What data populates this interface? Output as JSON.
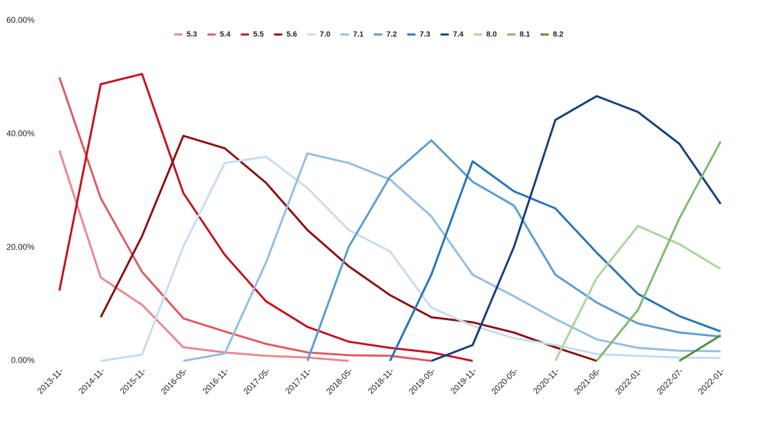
{
  "chart_data": {
    "type": "line",
    "categories": [
      "2013-11-",
      "2014-11-",
      "2015-11-",
      "2016-05-",
      "2016-11-",
      "2017-05-",
      "2017-11-",
      "2018-05-",
      "2018-11-",
      "2019-05-",
      "2019-11-",
      "2020-05-",
      "2020-11-",
      "2021-06-",
      "2022-01-",
      "2022-07-",
      "2022-01-"
    ],
    "series": [
      {
        "name": "5.3",
        "color": "#e8888f",
        "values": [
          37.1,
          14.7,
          9.9,
          2.4,
          1.5,
          0.9,
          0.6,
          0,
          null,
          null,
          null,
          null,
          null,
          null,
          null,
          null,
          null
        ]
      },
      {
        "name": "5.4",
        "color": "#df5a62",
        "values": [
          50,
          28.7,
          15.7,
          7.5,
          5.2,
          3.0,
          1.5,
          1.0,
          0.9,
          0,
          null,
          null,
          null,
          null,
          null,
          null,
          null
        ]
      },
      {
        "name": "5.5",
        "color": "#c8101e",
        "values": [
          12.4,
          48.8,
          50.6,
          29.6,
          18.7,
          10.5,
          6.0,
          3.4,
          2.3,
          1.5,
          0,
          null,
          null,
          null,
          null,
          null,
          null
        ]
      },
      {
        "name": "5.6",
        "color": "#8c0f0f",
        "values": [
          null,
          7.7,
          22,
          39.7,
          37.5,
          31.4,
          23.1,
          16.7,
          11.6,
          7.7,
          6.8,
          5.0,
          2.4,
          0,
          null,
          null,
          null
        ]
      },
      {
        "name": "7.0",
        "color": "#c6dcf0",
        "values": [
          null,
          0,
          1.1,
          20.2,
          34.9,
          36,
          30.5,
          23.1,
          19.3,
          9.4,
          6.2,
          4.0,
          2.8,
          1.2,
          0.9,
          0.6,
          0.5
        ]
      },
      {
        "name": "7.1",
        "color": "#94bde0",
        "values": [
          null,
          null,
          null,
          0,
          1.3,
          17.4,
          36.6,
          34.9,
          32,
          25.5,
          15.2,
          11.4,
          7.4,
          3.8,
          2.3,
          1.8,
          1.7
        ]
      },
      {
        "name": "7.2",
        "color": "#5b9bd0",
        "values": [
          null,
          null,
          null,
          null,
          null,
          null,
          0,
          20.1,
          32.5,
          38.9,
          31.6,
          27.4,
          15.2,
          10.3,
          6.6,
          5.0,
          4.3
        ]
      },
      {
        "name": "7.3",
        "color": "#2474b8",
        "values": [
          null,
          null,
          null,
          null,
          null,
          null,
          null,
          null,
          0,
          15.2,
          35.2,
          29.9,
          26.9,
          19.1,
          11.8,
          7.9,
          5.2
        ]
      },
      {
        "name": "7.4",
        "color": "#123f80",
        "values": [
          null,
          null,
          null,
          null,
          null,
          null,
          null,
          null,
          null,
          0,
          2.8,
          20.1,
          42.5,
          46.7,
          43.9,
          38.3,
          27.7
        ]
      },
      {
        "name": "8.0",
        "color": "#abd49d",
        "values": [
          null,
          null,
          null,
          null,
          null,
          null,
          null,
          null,
          null,
          null,
          null,
          null,
          0,
          14.6,
          23.8,
          20.6,
          16.2
        ]
      },
      {
        "name": "8.1",
        "color": "#7dba6d",
        "values": [
          null,
          null,
          null,
          null,
          null,
          null,
          null,
          null,
          null,
          null,
          null,
          null,
          null,
          0,
          9.0,
          25.1,
          38.7
        ]
      },
      {
        "name": "8.2",
        "color": "#4a8f3c",
        "values": [
          null,
          null,
          null,
          null,
          null,
          null,
          null,
          null,
          null,
          null,
          null,
          null,
          null,
          null,
          null,
          0,
          4.5
        ]
      }
    ],
    "ylim": [
      0,
      60
    ],
    "yticks": [
      {
        "value": 0,
        "label": "0.00%"
      },
      {
        "value": 20,
        "label": "20.00%"
      },
      {
        "value": 40,
        "label": "40.00%"
      },
      {
        "value": 60,
        "label": "60.00%"
      }
    ],
    "grid": false,
    "legend": "top"
  }
}
